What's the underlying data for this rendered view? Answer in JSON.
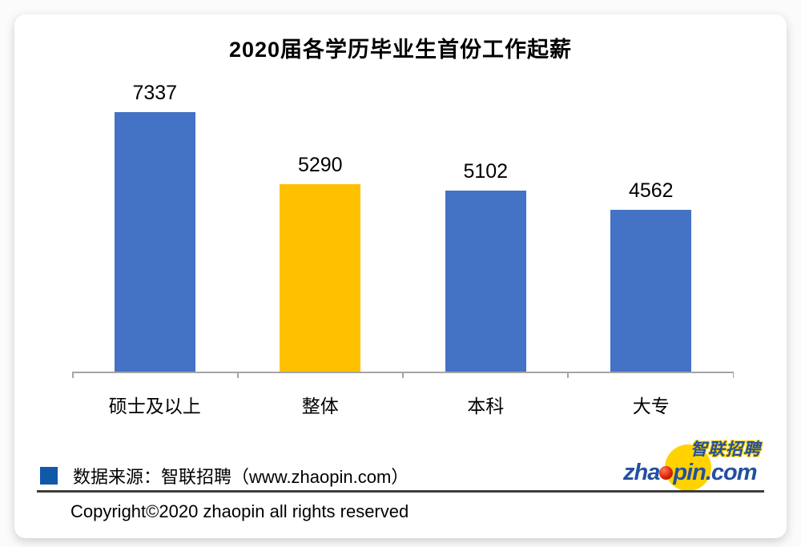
{
  "chart_data": {
    "type": "bar",
    "title": "2020届各学历毕业生首份工作起薪",
    "categories": [
      "硕士及以上",
      "整体",
      "本科",
      "大专"
    ],
    "values": [
      7337,
      5290,
      5102,
      4562
    ],
    "bar_colors": [
      "#4472C4",
      "#FFC000",
      "#4472C4",
      "#4472C4"
    ],
    "xlabel": "",
    "ylabel": "",
    "ylim": [
      0,
      7900
    ],
    "grid": false,
    "legend_position": "none",
    "value_labels_shown": true,
    "axis_color": "#A5A5A5"
  },
  "footer": {
    "legend_color": "#1159A8",
    "source_label": "数据来源：智联招聘（www.zhaopin.com）",
    "copyright": "Copyright©2020 zhaopin all rights reserved"
  },
  "logo": {
    "cn_text": "智联招聘",
    "en_prefix": "zha",
    "en_suffix": "pin.com",
    "blue": "#2350A0",
    "yellow": "#FFD200",
    "red": "#D61F00"
  }
}
